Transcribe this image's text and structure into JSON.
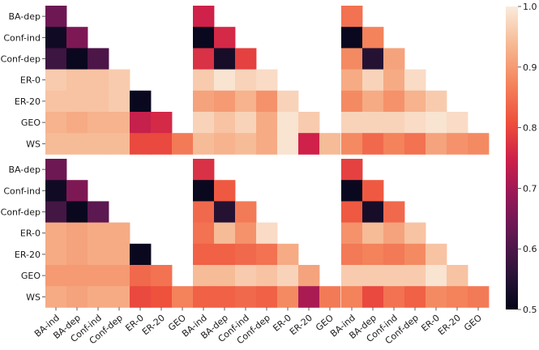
{
  "chart_data": {
    "type": "heatmap",
    "layout": {
      "rows": 2,
      "cols": 3,
      "shape": "lower-triangular"
    },
    "labels": [
      "BA-ind",
      "BA-dep",
      "Conf-ind",
      "Conf-dep",
      "ER-0",
      "ER-20",
      "GEO",
      "WS"
    ],
    "row_labels": [
      "BA-dep",
      "Conf-ind",
      "Conf-dep",
      "ER-0",
      "ER-20",
      "GEO",
      "WS"
    ],
    "col_labels": [
      "BA-ind",
      "BA-dep",
      "Conf-ind",
      "Conf-dep",
      "ER-0",
      "ER-20",
      "GEO"
    ],
    "colorbar": {
      "min": 0.5,
      "max": 1.0,
      "ticks": [
        "0.5",
        "0.6",
        "0.7",
        "0.8",
        "0.9",
        "1.0"
      ]
    },
    "panels": [
      {
        "row": 0,
        "col": 0,
        "values": [
          [
            0.64
          ],
          [
            0.52,
            0.66
          ],
          [
            0.58,
            0.51,
            0.6
          ],
          [
            0.96,
            0.95,
            0.95,
            0.96
          ],
          [
            0.95,
            0.95,
            0.95,
            0.96,
            0.51
          ],
          [
            0.93,
            0.92,
            0.93,
            0.93,
            0.74,
            0.76
          ],
          [
            0.94,
            0.94,
            0.94,
            0.94,
            0.8,
            0.8,
            0.86
          ]
        ]
      },
      {
        "row": 0,
        "col": 1,
        "values": [
          [
            0.75
          ],
          [
            0.51,
            0.76
          ],
          [
            0.77,
            0.53,
            0.79
          ],
          [
            0.96,
            0.99,
            0.97,
            0.98
          ],
          [
            0.91,
            0.9,
            0.93,
            0.89,
            0.97
          ],
          [
            0.97,
            0.95,
            0.97,
            0.92,
            0.99,
            0.96
          ],
          [
            0.94,
            0.93,
            0.94,
            0.92,
            0.99,
            0.75,
            0.94
          ]
        ]
      },
      {
        "row": 0,
        "col": 2,
        "values": [
          [
            0.85
          ],
          [
            0.51,
            0.87
          ],
          [
            0.88,
            0.55,
            0.91
          ],
          [
            0.92,
            0.97,
            0.92,
            0.98
          ],
          [
            0.88,
            0.92,
            0.89,
            0.93,
            0.96
          ],
          [
            0.97,
            0.97,
            0.97,
            0.98,
            0.99,
            0.98
          ],
          [
            0.88,
            0.84,
            0.87,
            0.85,
            0.91,
            0.89,
            0.88
          ]
        ]
      },
      {
        "row": 1,
        "col": 0,
        "values": [
          [
            0.64
          ],
          [
            0.52,
            0.66
          ],
          [
            0.59,
            0.51,
            0.62
          ],
          [
            0.92,
            0.91,
            0.92,
            0.92
          ],
          [
            0.92,
            0.91,
            0.92,
            0.92,
            0.51
          ],
          [
            0.9,
            0.9,
            0.9,
            0.9,
            0.84,
            0.85
          ],
          [
            0.92,
            0.91,
            0.92,
            0.92,
            0.8,
            0.81,
            0.87
          ]
        ]
      },
      {
        "row": 1,
        "col": 1,
        "values": [
          [
            0.77
          ],
          [
            0.51,
            0.82
          ],
          [
            0.84,
            0.55,
            0.86
          ],
          [
            0.85,
            0.94,
            0.89,
            0.98
          ],
          [
            0.83,
            0.83,
            0.84,
            0.85,
            0.92
          ],
          [
            0.94,
            0.94,
            0.96,
            0.95,
            0.97,
            0.91
          ],
          [
            0.83,
            0.83,
            0.84,
            0.83,
            0.88,
            0.71,
            0.86
          ]
        ]
      },
      {
        "row": 1,
        "col": 2,
        "values": [
          [
            0.79
          ],
          [
            0.51,
            0.82
          ],
          [
            0.82,
            0.53,
            0.84
          ],
          [
            0.89,
            0.94,
            0.91,
            0.95
          ],
          [
            0.86,
            0.87,
            0.86,
            0.88,
            0.95
          ],
          [
            0.96,
            0.96,
            0.96,
            0.96,
            0.99,
            0.95
          ],
          [
            0.87,
            0.8,
            0.85,
            0.83,
            0.88,
            0.87,
            0.86
          ]
        ]
      }
    ]
  }
}
